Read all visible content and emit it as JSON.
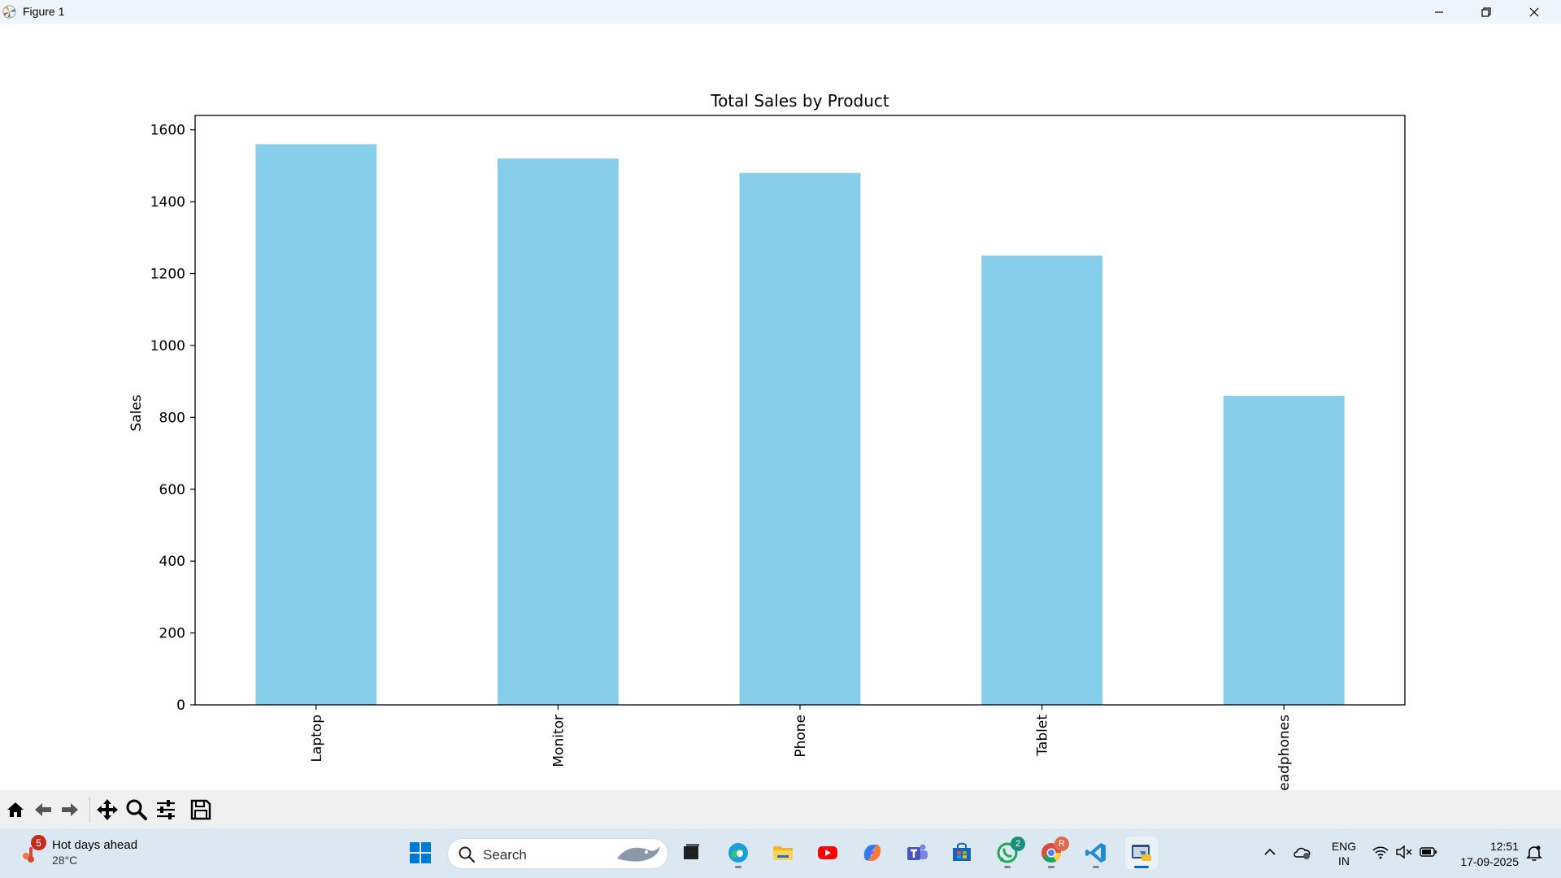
{
  "window": {
    "title": "Figure 1",
    "controls": [
      "minimize",
      "maximize",
      "close"
    ]
  },
  "chart_data": {
    "type": "bar",
    "title": "Total Sales by Product",
    "xlabel": "",
    "ylabel": "Sales",
    "categories": [
      "Laptop",
      "Monitor",
      "Phone",
      "Tablet",
      "Headphones"
    ],
    "values": [
      1560,
      1520,
      1480,
      1250,
      860
    ],
    "ylim": [
      0,
      1640
    ],
    "yticks": [
      0,
      200,
      400,
      600,
      800,
      1000,
      1200,
      1400,
      1600
    ],
    "bar_color": "#87ceeb",
    "grid": false,
    "legend": "none"
  },
  "toolbar": {
    "buttons": [
      "home",
      "back",
      "forward",
      "pan",
      "zoom",
      "configure-subplots",
      "save"
    ]
  },
  "taskbar": {
    "weather": {
      "badge": "5",
      "title": "Hot days ahead",
      "temp": "28°C"
    },
    "search": {
      "placeholder": "Search"
    },
    "apps": [
      {
        "name": "start",
        "icon": "windows-logo-icon"
      },
      {
        "name": "task-view",
        "icon": "task-view-icon"
      },
      {
        "name": "edge",
        "icon": "edge-icon"
      },
      {
        "name": "file-explorer",
        "icon": "folder-icon"
      },
      {
        "name": "youtube",
        "icon": "youtube-icon"
      },
      {
        "name": "copilot",
        "icon": "copilot-icon"
      },
      {
        "name": "teams",
        "icon": "teams-icon"
      },
      {
        "name": "store",
        "icon": "store-icon"
      },
      {
        "name": "whatsapp",
        "icon": "whatsapp-icon",
        "badge": "2"
      },
      {
        "name": "chrome",
        "icon": "chrome-icon",
        "badge": "R"
      },
      {
        "name": "vscode",
        "icon": "vscode-icon"
      },
      {
        "name": "python-figure",
        "icon": "python-icon"
      }
    ],
    "tray": {
      "language": "ENG",
      "region": "IN",
      "time": "12:51",
      "date": "17-09-2025"
    }
  },
  "colors": {
    "bar": "#87ceeb",
    "taskbar": "#dbe7f1",
    "titlebar": "#eef4f9",
    "accent": "#0067c0"
  }
}
